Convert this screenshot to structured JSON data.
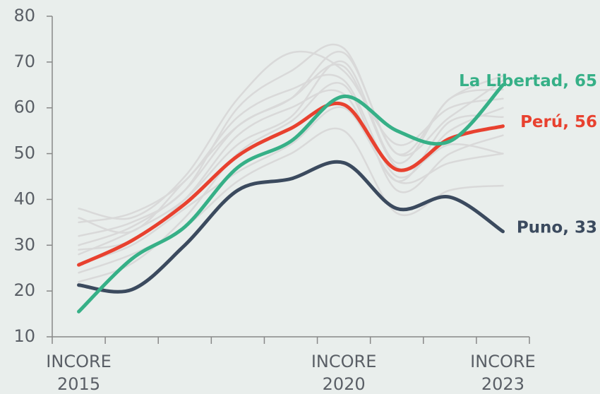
{
  "chart_data": {
    "type": "line",
    "categories": [
      "INCORE 2015",
      null,
      null,
      null,
      null,
      "INCORE 2020",
      null,
      null,
      "INCORE 2023"
    ],
    "ylim": [
      10,
      80
    ],
    "yticks": [
      10,
      20,
      30,
      40,
      50,
      60,
      70,
      80
    ],
    "series": [
      {
        "color": "#d9d9d9",
        "values": [
          38,
          36,
          45,
          62,
          72,
          68,
          52,
          60,
          62
        ]
      },
      {
        "color": "#d9d9d9",
        "values": [
          30,
          34,
          42,
          56,
          62,
          72,
          50,
          58,
          66
        ]
      },
      {
        "color": "#d9d9d9",
        "values": [
          28,
          33,
          40,
          52,
          58,
          70,
          48,
          62,
          64
        ]
      },
      {
        "color": "#d9d9d9",
        "values": [
          35,
          37,
          44,
          58,
          64,
          66,
          45,
          55,
          60
        ]
      },
      {
        "color": "#d9d9d9",
        "values": [
          22,
          26,
          36,
          50,
          57,
          65,
          42,
          50,
          54
        ]
      },
      {
        "color": "#d9d9d9",
        "values": [
          26,
          30,
          38,
          46,
          52,
          60,
          44,
          48,
          50
        ]
      },
      {
        "color": "#d9d9d9",
        "values": [
          32,
          35,
          42,
          60,
          68,
          73,
          50,
          62,
          67
        ]
      },
      {
        "color": "#d9d9d9",
        "values": [
          24,
          28,
          34,
          44,
          50,
          55,
          37,
          42,
          43
        ]
      },
      {
        "color": "#d9d9d9",
        "values": [
          29,
          31,
          40,
          54,
          60,
          63,
          44,
          57,
          58
        ]
      },
      {
        "color": "#d9d9d9",
        "values": [
          36,
          33,
          44,
          56,
          62,
          69,
          47,
          52,
          50
        ]
      },
      {
        "label": "Puno, 33",
        "color": "#3b4a5e",
        "values": [
          21.3,
          20.3,
          30,
          42,
          44.5,
          48,
          38,
          40.5,
          33
        ]
      },
      {
        "label": "Perú, 56",
        "color": "#e8412f",
        "values": [
          25.7,
          31,
          39,
          49.5,
          55.5,
          60.7,
          46.5,
          53.3,
          56
        ]
      },
      {
        "label": "La Libertad, 65",
        "color": "#36b087",
        "values": [
          15.5,
          27,
          34,
          47,
          52.7,
          62.5,
          55,
          52.7,
          65
        ]
      }
    ]
  }
}
